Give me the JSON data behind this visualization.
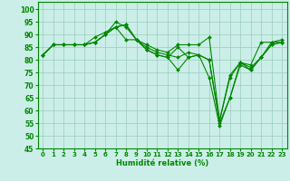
{
  "xlabel": "Humidité relative (%)",
  "background_color": "#cceee8",
  "grid_color": "#99ccbb",
  "line_color": "#008800",
  "xlim": [
    -0.5,
    23.5
  ],
  "ylim": [
    45,
    103
  ],
  "yticks": [
    45,
    50,
    55,
    60,
    65,
    70,
    75,
    80,
    85,
    90,
    95,
    100
  ],
  "xticks": [
    0,
    1,
    2,
    3,
    4,
    5,
    6,
    7,
    8,
    9,
    10,
    11,
    12,
    13,
    14,
    15,
    16,
    17,
    18,
    19,
    20,
    21,
    22,
    23
  ],
  "series": [
    [
      82,
      86,
      86,
      86,
      86,
      89,
      91,
      93,
      88,
      88,
      86,
      84,
      83,
      86,
      86,
      86,
      89,
      56,
      74,
      79,
      78,
      87,
      87,
      88
    ],
    [
      82,
      86,
      86,
      86,
      86,
      87,
      90,
      95,
      93,
      88,
      85,
      83,
      82,
      81,
      83,
      82,
      80,
      56,
      73,
      79,
      77,
      81,
      86,
      87
    ],
    [
      82,
      86,
      86,
      86,
      86,
      87,
      90,
      93,
      94,
      88,
      84,
      82,
      81,
      76,
      81,
      82,
      80,
      55,
      65,
      78,
      76,
      81,
      86,
      87
    ],
    [
      82,
      86,
      86,
      86,
      86,
      87,
      90,
      93,
      94,
      88,
      84,
      82,
      81,
      85,
      81,
      82,
      73,
      54,
      65,
      79,
      76,
      81,
      87,
      87
    ]
  ],
  "marker": "D",
  "markersize": 2.0,
  "linewidth": 0.8
}
